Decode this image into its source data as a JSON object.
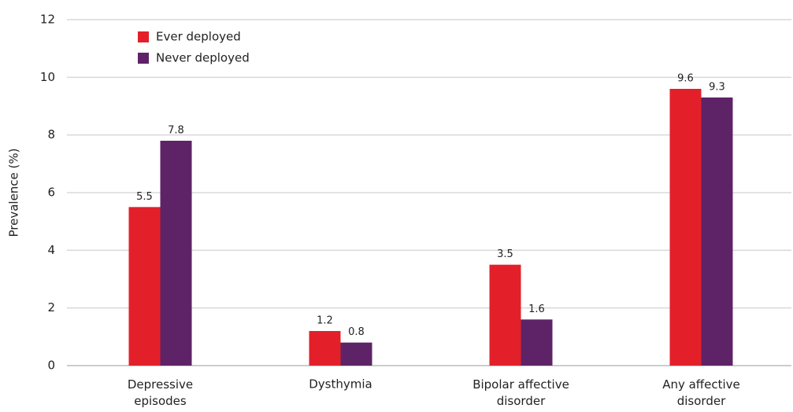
{
  "chart_data": {
    "type": "bar",
    "y_label": "Prevalence (%)",
    "categories": [
      "Depressive episodes",
      "Dysthymia",
      "Bipolar affective disorder",
      "Any affective disorder"
    ],
    "series": [
      {
        "name": "Ever deployed",
        "color": "#e3202a",
        "values": [
          5.5,
          1.2,
          3.5,
          9.6
        ]
      },
      {
        "name": "Never deployed",
        "color": "#5e2366",
        "values": [
          7.8,
          0.8,
          1.6,
          9.3
        ]
      }
    ],
    "ylim": [
      0,
      12
    ],
    "yticks": [
      0,
      2,
      4,
      6,
      8,
      10,
      12
    ],
    "grid": true,
    "legend": "upper left"
  }
}
